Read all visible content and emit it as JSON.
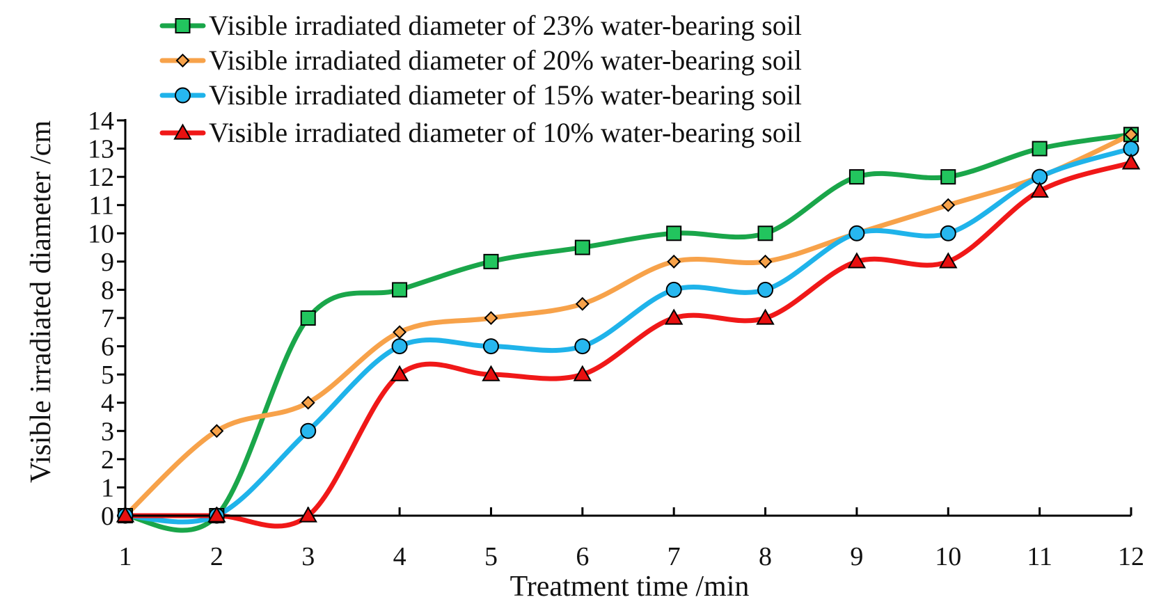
{
  "chart_data": {
    "type": "line",
    "title": "",
    "xlabel": "Treatment time /min",
    "ylabel": "Visible irradiated diameter /cm",
    "x": [
      1,
      2,
      3,
      4,
      5,
      6,
      7,
      8,
      9,
      10,
      11,
      12
    ],
    "xlim": [
      1,
      12
    ],
    "ylim": [
      0,
      14
    ],
    "yticks": [
      0,
      1,
      2,
      3,
      4,
      5,
      6,
      7,
      8,
      9,
      10,
      11,
      12,
      13,
      14
    ],
    "grid": false,
    "legend_position": "top",
    "smooth": true,
    "series": [
      {
        "name": "Visible irradiated diameter of 23% water-bearing soil",
        "color": "#1aa64a",
        "marker": "square",
        "marker_fill": "#22c55e",
        "values": [
          0,
          0,
          7,
          8,
          9,
          9.5,
          10,
          10,
          12,
          12,
          13,
          13.5
        ]
      },
      {
        "name": "Visible irradiated diameter of 20% water-bearing soil",
        "color": "#f7a24a",
        "marker": "diamond",
        "marker_fill": "#f7a24a",
        "values": [
          0,
          3,
          4,
          6.5,
          7,
          7.5,
          9,
          9,
          10,
          11,
          12,
          13.5
        ]
      },
      {
        "name": "Visible irradiated diameter of 15% water-bearing soil",
        "color": "#1fb3ea",
        "marker": "circle",
        "marker_fill": "#27b7ef",
        "values": [
          0,
          0,
          3,
          6,
          6,
          6,
          8,
          8,
          10,
          10,
          12,
          13
        ]
      },
      {
        "name": "Visible irradiated diameter of 10% water-bearing soil",
        "color": "#f01818",
        "marker": "triangle",
        "marker_fill": "#e81010",
        "values": [
          0,
          0,
          0,
          5,
          5,
          5,
          7,
          7,
          9,
          9,
          11.5,
          12.5
        ]
      }
    ]
  }
}
